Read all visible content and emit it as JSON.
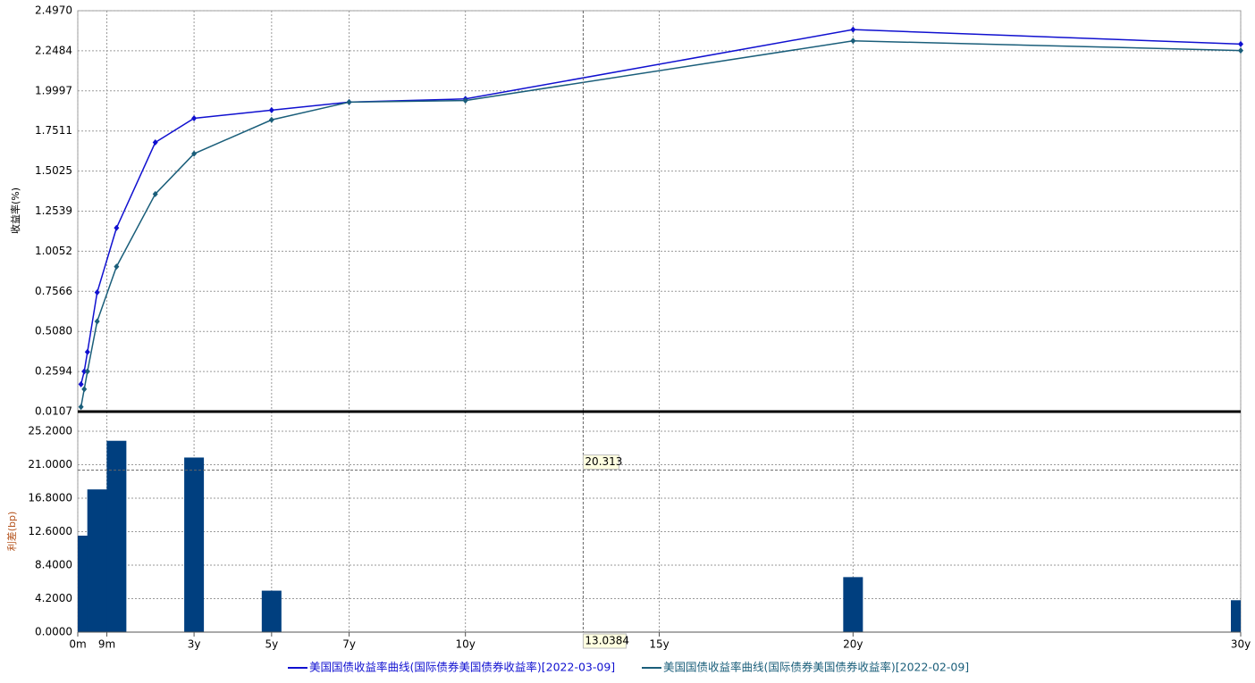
{
  "chart_data": [
    {
      "type": "line",
      "ylabel": "收益率(%)",
      "x": [
        0.0833,
        0.1667,
        0.25,
        0.5,
        1,
        2,
        3,
        5,
        7,
        10,
        20,
        30
      ],
      "series": [
        {
          "name": "美国国债收益率曲线(国际债券美国债券收益率)[2022-03-09]",
          "color": "#1010d0",
          "values": [
            0.18,
            0.26,
            0.38,
            0.75,
            1.15,
            1.68,
            1.83,
            1.88,
            1.93,
            1.95,
            2.38,
            2.29
          ]
        },
        {
          "name": "美国国债收益率曲线(国际债券美国债券收益率)[2022-02-09]",
          "color": "#1a5e7a",
          "values": [
            0.04,
            0.15,
            0.26,
            0.57,
            0.91,
            1.36,
            1.61,
            1.82,
            1.93,
            1.94,
            2.31,
            2.25
          ]
        }
      ],
      "ylim": [
        0.0107,
        2.497
      ],
      "yticks": [
        0.0107,
        0.2594,
        {
          "value": 0.508,
          "label": "0.5080"
        },
        0.7566,
        1.0052,
        1.2539,
        1.5025,
        1.7511,
        1.9997,
        2.2484,
        {
          "value": 2.497,
          "label": "2.4970"
        }
      ],
      "grid": true
    },
    {
      "type": "bar",
      "ylabel": "利差(bp)",
      "color": "#003f7f",
      "x": [
        0.25,
        0.5,
        1,
        3,
        5,
        20,
        30
      ],
      "values": [
        12.1,
        17.9,
        24.0,
        21.9,
        5.2,
        6.9,
        4.0
      ],
      "xlim": [
        0,
        30
      ],
      "xticks": [
        {
          "value": 0,
          "label": "0m"
        },
        {
          "value": 0.75,
          "label": "9m"
        },
        {
          "value": 3,
          "label": "3y"
        },
        {
          "value": 5,
          "label": "5y"
        },
        {
          "value": 7,
          "label": "7y"
        },
        {
          "value": 10,
          "label": "10y"
        },
        {
          "value": 15,
          "label": "15y"
        },
        {
          "value": 20,
          "label": "20y"
        },
        {
          "value": 30,
          "label": "30y"
        }
      ],
      "ylim": [
        0,
        25.2
      ],
      "yticks": [
        {
          "value": 0,
          "label": "0.0000"
        },
        {
          "value": 4.2,
          "label": "4.2000"
        },
        {
          "value": 8.4,
          "label": "8.4000"
        },
        {
          "value": 12.6,
          "label": "12.6000"
        },
        {
          "value": 16.8,
          "label": "16.8000"
        },
        {
          "value": 21,
          "label": "21.0000"
        },
        {
          "value": 25.2,
          "label": "25.2000"
        }
      ],
      "grid": true,
      "crosshair": {
        "x": {
          "value": 13.0384,
          "label": "13.0384"
        },
        "y": 20.313
      }
    }
  ]
}
